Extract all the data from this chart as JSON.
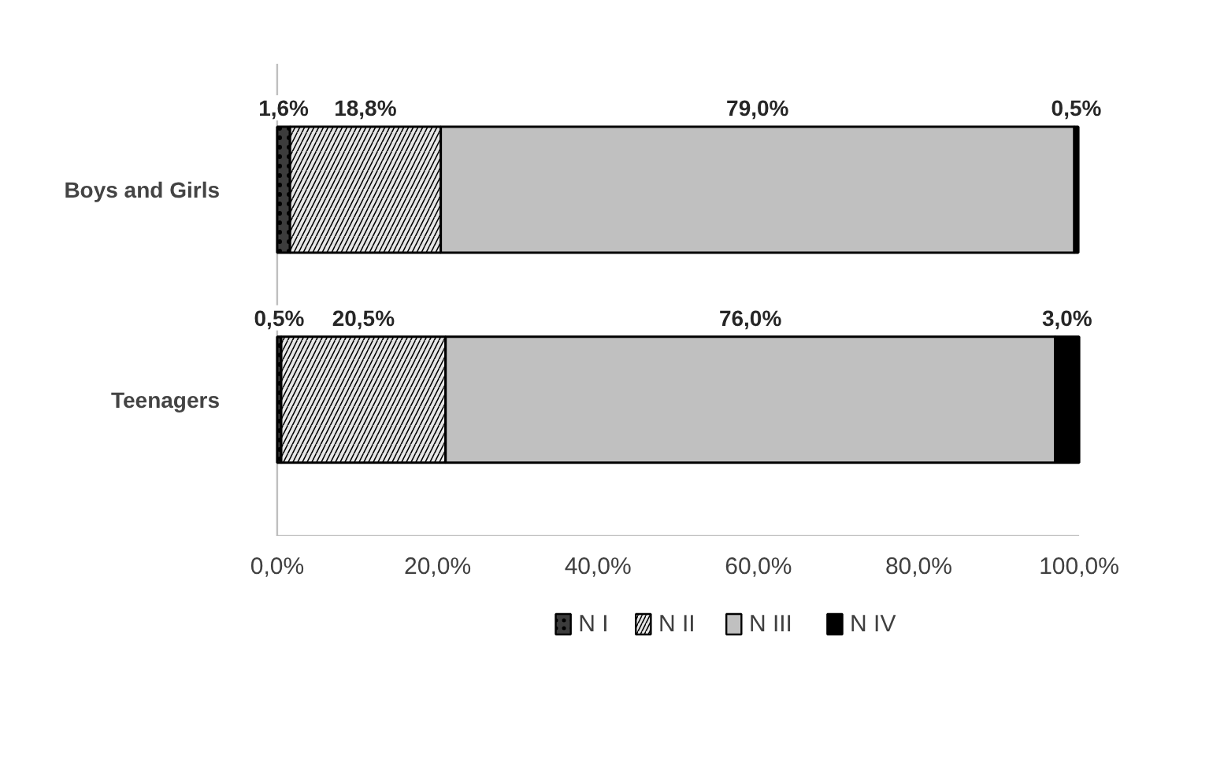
{
  "chart_data": {
    "type": "bar",
    "orientation": "horizontal",
    "stacked": true,
    "categories": [
      "Boys and Girls",
      "Teenagers"
    ],
    "series": [
      {
        "name": "N I",
        "color": "#3c3c3c",
        "values": [
          1.6,
          0.5
        ],
        "value_labels": [
          "1,6%",
          "0,5%"
        ]
      },
      {
        "name": "N II",
        "color": "#e6e6e6",
        "values": [
          18.8,
          20.5
        ],
        "value_labels": [
          "18,8%",
          "20,5%"
        ]
      },
      {
        "name": "N III",
        "color": "#c0c0c0",
        "values": [
          79.0,
          76.0
        ],
        "value_labels": [
          "79,0%",
          "76,0%"
        ]
      },
      {
        "name": "N IV",
        "color": "#000000",
        "values": [
          0.5,
          3.0
        ],
        "value_labels": [
          "0,5%",
          "3,0%"
        ]
      }
    ],
    "xlim": [
      0,
      100
    ],
    "xticks": [
      {
        "value": 0,
        "label": "0,0%"
      },
      {
        "value": 20,
        "label": "20,0%"
      },
      {
        "value": 40,
        "label": "40,0%"
      },
      {
        "value": 60,
        "label": "60,0%"
      },
      {
        "value": 80,
        "label": "80,0%"
      },
      {
        "value": 100,
        "label": "100,0%"
      }
    ],
    "grid": false,
    "legend": "bottom"
  }
}
